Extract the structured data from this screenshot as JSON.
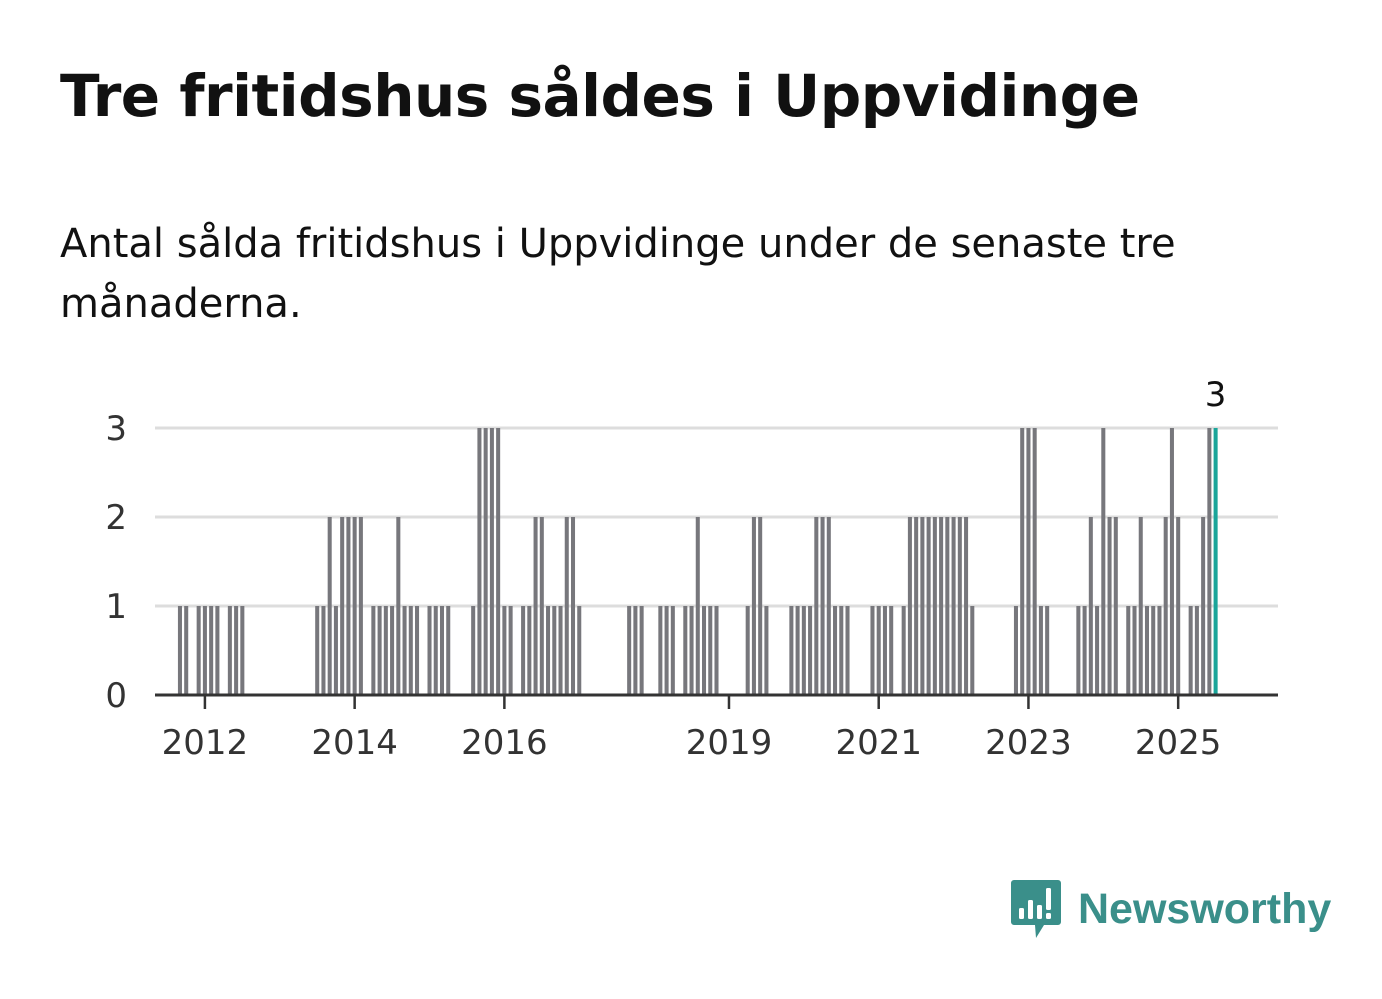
{
  "title": "Tre fritidshus såldes i Uppvidinge",
  "subtitle": "Antal sålda fritidshus i Uppvidinge under de senaste tre månaderna.",
  "brand": {
    "name": "Newsworthy",
    "icon": "newsworthy-chart-bubble-icon",
    "color": "#3a8f8a"
  },
  "colors": {
    "bar": "#77777c",
    "highlight": "#1aa59a",
    "grid": "#dddddd",
    "axis": "#333333"
  },
  "chart_data": {
    "type": "bar",
    "title": "Tre fritidshus såldes i Uppvidinge",
    "subtitle": "Antal sålda fritidshus i Uppvidinge under de senaste tre månaderna.",
    "xlabel": "",
    "ylabel": "",
    "ylim": [
      0,
      3
    ],
    "yticks": [
      0,
      1,
      2,
      3
    ],
    "xticks": [
      {
        "label": "2012",
        "x": "2012-01"
      },
      {
        "label": "2014",
        "x": "2014-01"
      },
      {
        "label": "2016",
        "x": "2016-01"
      },
      {
        "label": "2019",
        "x": "2019-01"
      },
      {
        "label": "2021",
        "x": "2021-01"
      },
      {
        "label": "2023",
        "x": "2023-01"
      },
      {
        "label": "2025",
        "x": "2025-01"
      }
    ],
    "x_start": "2011-05",
    "x_end": "2026-05",
    "grid": true,
    "highlight_last": true,
    "last_value_label": "3",
    "data": [
      [
        "2011-09",
        1
      ],
      [
        "2011-10",
        1
      ],
      [
        "2011-12",
        1
      ],
      [
        "2012-01",
        1
      ],
      [
        "2012-02",
        1
      ],
      [
        "2012-03",
        1
      ],
      [
        "2012-05",
        1
      ],
      [
        "2012-06",
        1
      ],
      [
        "2012-07",
        1
      ],
      [
        "2013-07",
        1
      ],
      [
        "2013-08",
        1
      ],
      [
        "2013-09",
        2
      ],
      [
        "2013-10",
        1
      ],
      [
        "2013-11",
        2
      ],
      [
        "2013-12",
        2
      ],
      [
        "2014-01",
        2
      ],
      [
        "2014-02",
        2
      ],
      [
        "2014-04",
        1
      ],
      [
        "2014-05",
        1
      ],
      [
        "2014-06",
        1
      ],
      [
        "2014-07",
        1
      ],
      [
        "2014-08",
        2
      ],
      [
        "2014-09",
        1
      ],
      [
        "2014-10",
        1
      ],
      [
        "2014-11",
        1
      ],
      [
        "2015-01",
        1
      ],
      [
        "2015-02",
        1
      ],
      [
        "2015-03",
        1
      ],
      [
        "2015-04",
        1
      ],
      [
        "2015-08",
        1
      ],
      [
        "2015-09",
        3
      ],
      [
        "2015-10",
        3
      ],
      [
        "2015-11",
        3
      ],
      [
        "2015-12",
        3
      ],
      [
        "2016-01",
        1
      ],
      [
        "2016-02",
        1
      ],
      [
        "2016-04",
        1
      ],
      [
        "2016-05",
        1
      ],
      [
        "2016-06",
        2
      ],
      [
        "2016-07",
        2
      ],
      [
        "2016-08",
        1
      ],
      [
        "2016-09",
        1
      ],
      [
        "2016-10",
        1
      ],
      [
        "2016-11",
        2
      ],
      [
        "2016-12",
        2
      ],
      [
        "2017-01",
        1
      ],
      [
        "2017-09",
        1
      ],
      [
        "2017-10",
        1
      ],
      [
        "2017-11",
        1
      ],
      [
        "2018-02",
        1
      ],
      [
        "2018-03",
        1
      ],
      [
        "2018-04",
        1
      ],
      [
        "2018-06",
        1
      ],
      [
        "2018-07",
        1
      ],
      [
        "2018-08",
        2
      ],
      [
        "2018-09",
        1
      ],
      [
        "2018-10",
        1
      ],
      [
        "2018-11",
        1
      ],
      [
        "2019-04",
        1
      ],
      [
        "2019-05",
        2
      ],
      [
        "2019-06",
        2
      ],
      [
        "2019-07",
        1
      ],
      [
        "2019-11",
        1
      ],
      [
        "2019-12",
        1
      ],
      [
        "2020-01",
        1
      ],
      [
        "2020-02",
        1
      ],
      [
        "2020-03",
        2
      ],
      [
        "2020-04",
        2
      ],
      [
        "2020-05",
        2
      ],
      [
        "2020-06",
        1
      ],
      [
        "2020-07",
        1
      ],
      [
        "2020-08",
        1
      ],
      [
        "2020-12",
        1
      ],
      [
        "2021-01",
        1
      ],
      [
        "2021-02",
        1
      ],
      [
        "2021-03",
        1
      ],
      [
        "2021-05",
        1
      ],
      [
        "2021-06",
        2
      ],
      [
        "2021-07",
        2
      ],
      [
        "2021-08",
        2
      ],
      [
        "2021-09",
        2
      ],
      [
        "2021-10",
        2
      ],
      [
        "2021-11",
        2
      ],
      [
        "2021-12",
        2
      ],
      [
        "2022-01",
        2
      ],
      [
        "2022-02",
        2
      ],
      [
        "2022-03",
        2
      ],
      [
        "2022-04",
        1
      ],
      [
        "2022-11",
        1
      ],
      [
        "2022-12",
        3
      ],
      [
        "2023-01",
        3
      ],
      [
        "2023-02",
        3
      ],
      [
        "2023-03",
        1
      ],
      [
        "2023-04",
        1
      ],
      [
        "2023-09",
        1
      ],
      [
        "2023-10",
        1
      ],
      [
        "2023-11",
        2
      ],
      [
        "2023-12",
        1
      ],
      [
        "2024-01",
        3
      ],
      [
        "2024-02",
        2
      ],
      [
        "2024-03",
        2
      ],
      [
        "2024-05",
        1
      ],
      [
        "2024-06",
        1
      ],
      [
        "2024-07",
        2
      ],
      [
        "2024-08",
        1
      ],
      [
        "2024-09",
        1
      ],
      [
        "2024-10",
        1
      ],
      [
        "2024-11",
        2
      ],
      [
        "2024-12",
        3
      ],
      [
        "2025-01",
        2
      ],
      [
        "2025-03",
        1
      ],
      [
        "2025-04",
        1
      ],
      [
        "2025-05",
        2
      ],
      [
        "2025-06",
        3
      ],
      [
        "2025-07",
        3
      ]
    ]
  }
}
